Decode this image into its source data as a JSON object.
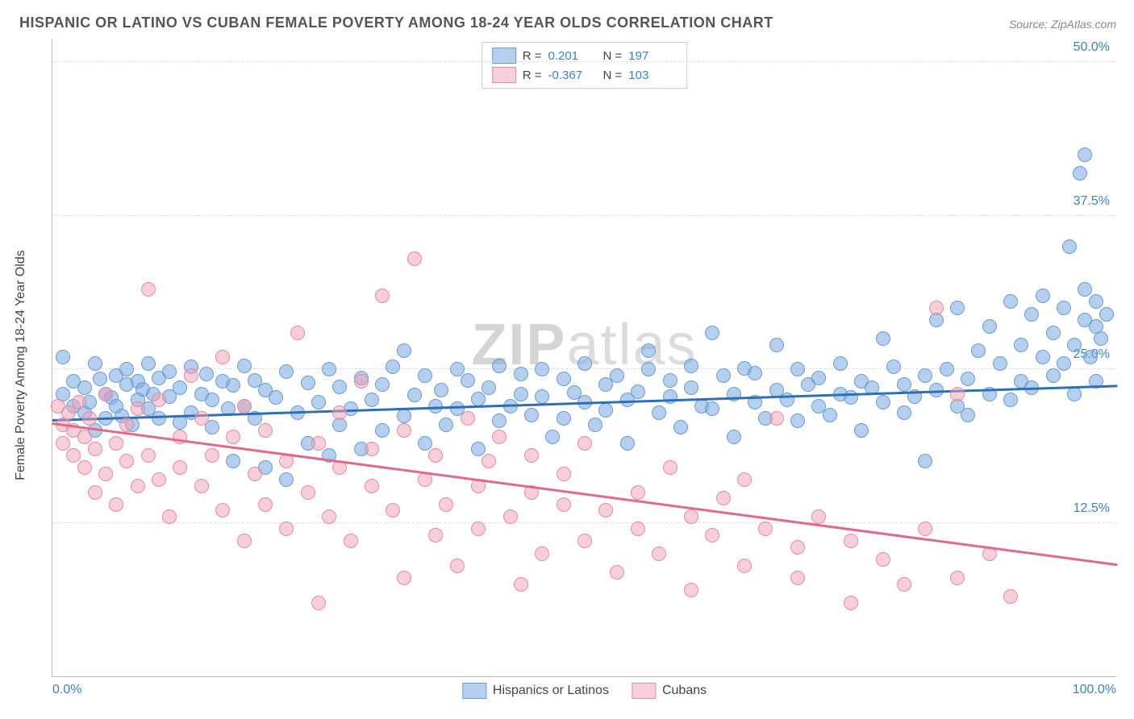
{
  "title": "HISPANIC OR LATINO VS CUBAN FEMALE POVERTY AMONG 18-24 YEAR OLDS CORRELATION CHART",
  "source": "Source: ZipAtlas.com",
  "y_axis_label": "Female Poverty Among 18-24 Year Olds",
  "watermark": {
    "bold": "ZIP",
    "thin": "atlas"
  },
  "chart": {
    "type": "scatter",
    "xlim": [
      0,
      100
    ],
    "ylim": [
      0,
      52
    ],
    "x_ticks": [
      {
        "value": 0,
        "label": "0.0%",
        "align": "left"
      },
      {
        "value": 100,
        "label": "100.0%",
        "align": "right"
      }
    ],
    "y_ticks": [
      {
        "value": 12.5,
        "label": "12.5%"
      },
      {
        "value": 25.0,
        "label": "25.0%"
      },
      {
        "value": 37.5,
        "label": "37.5%"
      },
      {
        "value": 50.0,
        "label": "50.0%"
      }
    ],
    "grid_color": "#dddddd",
    "background_color": "#ffffff",
    "series": [
      {
        "name": "Hispanics or Latinos",
        "color_fill": "rgba(120,170,225,0.55)",
        "color_stroke": "#6a9cd4",
        "marker_radius": 9,
        "stats": {
          "R": "0.201",
          "N": "197"
        },
        "trend": {
          "x1": 0,
          "y1": 20.8,
          "x2": 100,
          "y2": 23.6,
          "color": "#2f6fb3"
        },
        "points": [
          [
            1,
            23
          ],
          [
            1,
            26
          ],
          [
            2,
            22
          ],
          [
            2,
            24
          ],
          [
            3,
            21.5
          ],
          [
            3,
            23.5
          ],
          [
            3.5,
            22.3
          ],
          [
            4,
            25.5
          ],
          [
            4,
            20
          ],
          [
            4.5,
            24.2
          ],
          [
            5,
            23
          ],
          [
            5,
            21
          ],
          [
            5.5,
            22.7
          ],
          [
            6,
            24.5
          ],
          [
            6,
            22
          ],
          [
            6.5,
            21.2
          ],
          [
            7,
            23.8
          ],
          [
            7,
            25
          ],
          [
            7.5,
            20.5
          ],
          [
            8,
            24
          ],
          [
            8,
            22.5
          ],
          [
            8.5,
            23.4
          ],
          [
            9,
            21.8
          ],
          [
            9,
            25.5
          ],
          [
            9.5,
            23
          ],
          [
            10,
            24.3
          ],
          [
            10,
            21
          ],
          [
            11,
            22.8
          ],
          [
            11,
            24.8
          ],
          [
            12,
            20.7
          ],
          [
            12,
            23.5
          ],
          [
            13,
            25.2
          ],
          [
            13,
            21.5
          ],
          [
            14,
            23
          ],
          [
            14.5,
            24.6
          ],
          [
            15,
            20.3
          ],
          [
            15,
            22.5
          ],
          [
            16,
            24
          ],
          [
            16.5,
            21.8
          ],
          [
            17,
            23.7
          ],
          [
            17,
            17.5
          ],
          [
            18,
            25.3
          ],
          [
            18,
            22
          ],
          [
            19,
            24.1
          ],
          [
            19,
            21
          ],
          [
            20,
            23.3
          ],
          [
            20,
            17
          ],
          [
            21,
            22.7
          ],
          [
            22,
            24.8
          ],
          [
            22,
            16
          ],
          [
            23,
            21.5
          ],
          [
            24,
            23.9
          ],
          [
            24,
            19
          ],
          [
            25,
            22.3
          ],
          [
            26,
            25
          ],
          [
            26,
            18
          ],
          [
            27,
            20.5
          ],
          [
            27,
            23.6
          ],
          [
            28,
            21.8
          ],
          [
            29,
            24.3
          ],
          [
            29,
            18.5
          ],
          [
            30,
            22.5
          ],
          [
            31,
            23.8
          ],
          [
            31,
            20
          ],
          [
            32,
            25.2
          ],
          [
            33,
            21.2
          ],
          [
            33,
            26.5
          ],
          [
            34,
            22.9
          ],
          [
            35,
            19
          ],
          [
            35,
            24.5
          ],
          [
            36,
            22
          ],
          [
            36.5,
            23.3
          ],
          [
            37,
            20.5
          ],
          [
            38,
            25
          ],
          [
            38,
            21.8
          ],
          [
            39,
            24.1
          ],
          [
            40,
            22.6
          ],
          [
            40,
            18.5
          ],
          [
            41,
            23.5
          ],
          [
            42,
            20.8
          ],
          [
            42,
            25.3
          ],
          [
            43,
            22
          ],
          [
            44,
            24.6
          ],
          [
            44,
            23
          ],
          [
            45,
            21.3
          ],
          [
            46,
            25
          ],
          [
            46,
            22.8
          ],
          [
            47,
            19.5
          ],
          [
            48,
            24.2
          ],
          [
            48,
            21
          ],
          [
            49,
            23.1
          ],
          [
            50,
            22.3
          ],
          [
            50,
            25.5
          ],
          [
            51,
            20.5
          ],
          [
            52,
            23.8
          ],
          [
            52,
            21.7
          ],
          [
            53,
            24.5
          ],
          [
            54,
            22.5
          ],
          [
            54,
            19
          ],
          [
            55,
            23.2
          ],
          [
            56,
            25
          ],
          [
            56,
            26.5
          ],
          [
            57,
            21.5
          ],
          [
            58,
            24.1
          ],
          [
            58,
            22.8
          ],
          [
            59,
            20.3
          ],
          [
            60,
            23.5
          ],
          [
            60,
            25.3
          ],
          [
            61,
            22
          ],
          [
            62,
            28
          ],
          [
            62,
            21.8
          ],
          [
            63,
            24.5
          ],
          [
            64,
            23
          ],
          [
            64,
            19.5
          ],
          [
            65,
            25.1
          ],
          [
            66,
            22.3
          ],
          [
            66,
            24.7
          ],
          [
            67,
            21
          ],
          [
            68,
            23.3
          ],
          [
            68,
            27
          ],
          [
            69,
            22.5
          ],
          [
            70,
            25
          ],
          [
            70,
            20.8
          ],
          [
            71,
            23.8
          ],
          [
            72,
            22
          ],
          [
            72,
            24.3
          ],
          [
            73,
            21.3
          ],
          [
            74,
            25.5
          ],
          [
            74,
            23
          ],
          [
            75,
            22.7
          ],
          [
            76,
            24
          ],
          [
            76,
            20
          ],
          [
            77,
            23.5
          ],
          [
            78,
            27.5
          ],
          [
            78,
            22.3
          ],
          [
            79,
            25.2
          ],
          [
            80,
            21.5
          ],
          [
            80,
            23.8
          ],
          [
            81,
            22.8
          ],
          [
            82,
            24.5
          ],
          [
            82,
            17.5
          ],
          [
            83,
            29
          ],
          [
            83,
            23.3
          ],
          [
            84,
            25
          ],
          [
            85,
            22
          ],
          [
            85,
            30
          ],
          [
            86,
            24.2
          ],
          [
            86,
            21.3
          ],
          [
            87,
            26.5
          ],
          [
            88,
            23
          ],
          [
            88,
            28.5
          ],
          [
            89,
            25.5
          ],
          [
            90,
            22.5
          ],
          [
            90,
            30.5
          ],
          [
            91,
            27
          ],
          [
            91,
            24
          ],
          [
            92,
            29.5
          ],
          [
            92,
            23.5
          ],
          [
            93,
            26
          ],
          [
            93,
            31
          ],
          [
            94,
            28
          ],
          [
            94,
            24.5
          ],
          [
            95,
            30
          ],
          [
            95,
            25.5
          ],
          [
            95.5,
            35
          ],
          [
            96,
            27
          ],
          [
            96,
            23
          ],
          [
            96.5,
            41
          ],
          [
            97,
            29
          ],
          [
            97,
            31.5
          ],
          [
            97,
            42.5
          ],
          [
            97.5,
            26
          ],
          [
            98,
            28.5
          ],
          [
            98,
            30.5
          ],
          [
            98,
            24
          ],
          [
            98.5,
            27.5
          ],
          [
            99,
            29.5
          ]
        ]
      },
      {
        "name": "Cubans",
        "color_fill": "rgba(240,160,180,0.5)",
        "color_stroke": "#e48ba3",
        "marker_radius": 9,
        "stats": {
          "R": "-0.367",
          "N": "103"
        },
        "trend": {
          "x1": 0,
          "y1": 20.5,
          "x2": 100,
          "y2": 9.0,
          "color": "#e06a8c"
        },
        "points": [
          [
            0.5,
            22
          ],
          [
            1,
            20.5
          ],
          [
            1,
            19
          ],
          [
            1.5,
            21.5
          ],
          [
            2,
            18
          ],
          [
            2,
            20
          ],
          [
            2.5,
            22.3
          ],
          [
            3,
            17
          ],
          [
            3,
            19.5
          ],
          [
            3.5,
            21
          ],
          [
            4,
            15
          ],
          [
            4,
            18.5
          ],
          [
            5,
            23
          ],
          [
            5,
            16.5
          ],
          [
            6,
            19
          ],
          [
            6,
            14
          ],
          [
            7,
            17.5
          ],
          [
            7,
            20.5
          ],
          [
            8,
            15.5
          ],
          [
            8,
            21.8
          ],
          [
            9,
            31.5
          ],
          [
            9,
            18
          ],
          [
            10,
            16
          ],
          [
            10,
            22.5
          ],
          [
            11,
            13
          ],
          [
            12,
            19.5
          ],
          [
            12,
            17
          ],
          [
            13,
            24.5
          ],
          [
            14,
            15.5
          ],
          [
            14,
            21
          ],
          [
            15,
            18
          ],
          [
            16,
            13.5
          ],
          [
            16,
            26
          ],
          [
            17,
            19.5
          ],
          [
            18,
            11
          ],
          [
            18,
            22
          ],
          [
            19,
            16.5
          ],
          [
            20,
            14
          ],
          [
            20,
            20
          ],
          [
            22,
            17.5
          ],
          [
            22,
            12
          ],
          [
            23,
            28
          ],
          [
            24,
            15
          ],
          [
            25,
            19
          ],
          [
            25,
            6
          ],
          [
            26,
            13
          ],
          [
            27,
            21.5
          ],
          [
            27,
            17
          ],
          [
            28,
            11
          ],
          [
            29,
            24
          ],
          [
            30,
            15.5
          ],
          [
            30,
            18.5
          ],
          [
            31,
            31
          ],
          [
            32,
            13.5
          ],
          [
            33,
            8
          ],
          [
            33,
            20
          ],
          [
            34,
            34
          ],
          [
            35,
            16
          ],
          [
            36,
            11.5
          ],
          [
            36,
            18
          ],
          [
            37,
            14
          ],
          [
            38,
            9
          ],
          [
            39,
            21
          ],
          [
            40,
            15.5
          ],
          [
            40,
            12
          ],
          [
            41,
            17.5
          ],
          [
            42,
            19.5
          ],
          [
            43,
            13
          ],
          [
            44,
            7.5
          ],
          [
            45,
            15
          ],
          [
            45,
            18
          ],
          [
            46,
            10
          ],
          [
            48,
            14
          ],
          [
            48,
            16.5
          ],
          [
            50,
            11
          ],
          [
            50,
            19
          ],
          [
            52,
            13.5
          ],
          [
            53,
            8.5
          ],
          [
            55,
            15
          ],
          [
            55,
            12
          ],
          [
            57,
            10
          ],
          [
            58,
            17
          ],
          [
            60,
            13
          ],
          [
            60,
            7
          ],
          [
            62,
            11.5
          ],
          [
            63,
            14.5
          ],
          [
            65,
            9
          ],
          [
            65,
            16
          ],
          [
            67,
            12
          ],
          [
            68,
            21
          ],
          [
            70,
            10.5
          ],
          [
            70,
            8
          ],
          [
            72,
            13
          ],
          [
            75,
            6
          ],
          [
            75,
            11
          ],
          [
            78,
            9.5
          ],
          [
            80,
            7.5
          ],
          [
            82,
            12
          ],
          [
            83,
            30
          ],
          [
            85,
            8
          ],
          [
            85,
            23
          ],
          [
            88,
            10
          ],
          [
            90,
            6.5
          ]
        ]
      }
    ],
    "legend": {
      "items": [
        {
          "label": "Hispanics or Latinos",
          "swatch": "blue"
        },
        {
          "label": "Cubans",
          "swatch": "pink"
        }
      ]
    }
  }
}
